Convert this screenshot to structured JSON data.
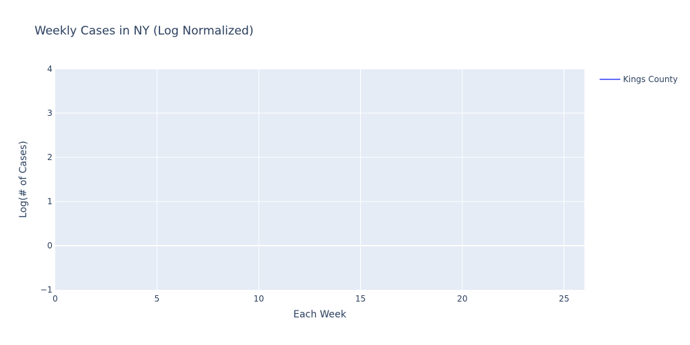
{
  "chart_data": {
    "type": "line",
    "title": "Weekly Cases in NY (Log Normalized)",
    "xlabel": "Each Week",
    "ylabel": "Log(# of Cases)",
    "xlim": [
      0,
      26
    ],
    "ylim": [
      -1,
      4
    ],
    "x_ticks": [
      0,
      5,
      10,
      15,
      20,
      25
    ],
    "y_ticks": [
      -1,
      0,
      1,
      2,
      3,
      4
    ],
    "y_tick_labels": [
      "−1",
      "0",
      "1",
      "2",
      "3",
      "4"
    ],
    "grid": true,
    "legend_position": "top-right",
    "series": [
      {
        "name": "Kings County",
        "color": "#636efa",
        "x": [],
        "y": []
      }
    ],
    "colors": {
      "plot_background": "#e5ecf6",
      "grid": "#ffffff",
      "text": "#2a3f5f"
    }
  }
}
